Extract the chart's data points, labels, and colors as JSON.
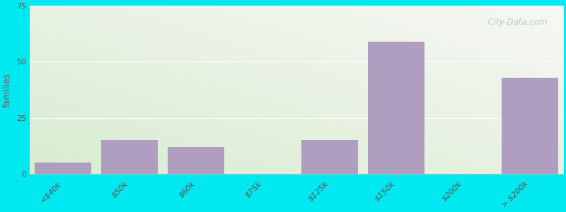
{
  "ylabel": "families",
  "categories": [
    "<$40k",
    "$50k",
    "$60k",
    "$75k",
    "$125k",
    "$150k",
    "$200k",
    "> $200k"
  ],
  "values": [
    5,
    15,
    12,
    0,
    15,
    59,
    0,
    43
  ],
  "bar_color": "#b09ec0",
  "background_color": "#00e8f0",
  "grad_color_left": "#d8ecd0",
  "grad_color_right": "#f5f5f0",
  "grad_color_top": "#f0f0ec",
  "title_fontsize": 15,
  "subtitle_fontsize": 11,
  "subtitle_color": "#557070",
  "ylabel_fontsize": 9,
  "tick_label_fontsize": 8,
  "ylim": [
    0,
    75
  ],
  "yticks": [
    0,
    25,
    50,
    75
  ],
  "watermark": "  City-Data.com",
  "watermark_color": "#b0c8c8"
}
